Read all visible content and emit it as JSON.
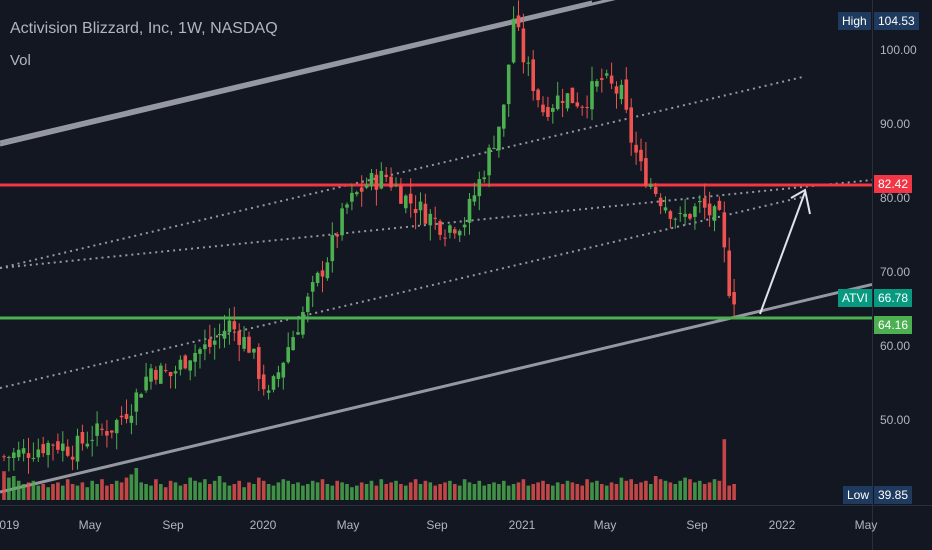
{
  "header": {
    "title": "Activision Blizzard, Inc, 1W, NASDAQ",
    "vol_label": "Vol"
  },
  "colors": {
    "background": "#131722",
    "up": "#4caf50",
    "down": "#ef5350",
    "resistance": "#f23645",
    "support": "#4caf50",
    "channel": "#9598a1",
    "ticker_tag": "#089981",
    "high_low_tag": "#1e3a5f"
  },
  "tags": {
    "high_label": "High",
    "high_value": "104.53",
    "low_label": "Low",
    "low_value": "39.85",
    "resistance_value": "82.42",
    "ticker_label": "ATVI",
    "ticker_value": "66.78",
    "support_value": "64.16"
  },
  "chart_data": {
    "type": "candlestick",
    "title": "Activision Blizzard, Inc, 1W, NASDAQ",
    "y_tick_labels": [
      "100.00",
      "90.00",
      "80.00",
      "70.00",
      "60.00",
      "50.00"
    ],
    "y_ticks": [
      100,
      90,
      80,
      70,
      60,
      50
    ],
    "x_tick_labels": [
      "2019",
      "May",
      "Sep",
      "2020",
      "May",
      "Sep",
      "2021",
      "May",
      "Sep",
      "2022",
      "May"
    ],
    "ylim": [
      39.85,
      104.53
    ],
    "horizontal_levels": [
      {
        "value": 82.42,
        "color": "red"
      },
      {
        "value": 64.16,
        "color": "green"
      }
    ],
    "channel": {
      "start": [
        "2019-01",
        40
      ],
      "lines": [
        {
          "style": "solid",
          "offset": 0
        },
        {
          "style": "dotted",
          "offset": 13
        },
        {
          "style": "dotted",
          "offset": 26
        },
        {
          "style": "dotted",
          "offset": 39
        },
        {
          "style": "solid",
          "offset": 52
        }
      ]
    },
    "projection_arrow": {
      "from": [
        "2021-11",
        65
      ],
      "to": [
        "2022-01",
        82
      ]
    },
    "weekly_close_path": [
      [
        0,
        45
      ],
      [
        6,
        46
      ],
      [
        10,
        47
      ],
      [
        14,
        46
      ],
      [
        18,
        48
      ],
      [
        22,
        49
      ],
      [
        26,
        52
      ],
      [
        30,
        57
      ],
      [
        34,
        56
      ],
      [
        38,
        59
      ],
      [
        42,
        60
      ],
      [
        46,
        63
      ],
      [
        50,
        60
      ],
      [
        54,
        53
      ],
      [
        58,
        60
      ],
      [
        62,
        66
      ],
      [
        66,
        72
      ],
      [
        70,
        79
      ],
      [
        74,
        82
      ],
      [
        78,
        83
      ],
      [
        82,
        80
      ],
      [
        86,
        78
      ],
      [
        90,
        76
      ],
      [
        94,
        77
      ],
      [
        98,
        84
      ],
      [
        102,
        92
      ],
      [
        104,
        104.5
      ],
      [
        106,
        99
      ],
      [
        110,
        92
      ],
      [
        114,
        94
      ],
      [
        118,
        93
      ],
      [
        122,
        96
      ],
      [
        126,
        94
      ],
      [
        128,
        88
      ],
      [
        130,
        84
      ],
      [
        134,
        80
      ],
      [
        138,
        77
      ],
      [
        142,
        79
      ],
      [
        146,
        77
      ],
      [
        148,
        68
      ],
      [
        149,
        66.78
      ]
    ],
    "volume_profile": [
      18,
      14,
      15,
      12,
      10,
      11,
      12,
      9,
      10,
      8,
      10,
      11,
      9,
      13,
      10,
      9,
      11,
      8,
      12,
      10,
      13,
      9,
      10,
      12,
      11,
      14,
      16,
      20,
      11,
      10,
      9,
      13,
      10,
      8,
      12,
      11,
      9,
      10,
      14,
      12,
      11,
      13,
      10,
      12,
      15,
      11,
      9,
      10,
      12,
      8,
      11,
      10,
      14,
      12,
      10,
      9,
      11,
      13,
      12,
      10,
      11,
      9,
      10,
      12,
      11,
      13,
      10,
      9,
      12,
      11,
      10,
      8,
      9,
      11,
      10,
      12,
      9,
      13,
      10,
      11,
      12,
      10,
      9,
      11,
      13,
      10,
      12,
      11,
      9,
      10,
      11,
      12,
      10,
      9,
      13,
      11,
      10,
      12,
      9,
      10,
      11,
      10,
      12,
      9,
      10,
      11,
      13,
      9,
      10,
      11,
      12,
      10,
      9,
      11,
      10,
      12,
      11,
      10,
      9,
      13,
      11,
      12,
      10,
      9,
      11,
      10,
      14,
      12,
      13,
      10,
      11,
      12,
      10,
      15,
      13,
      12,
      11,
      10,
      12,
      14,
      13,
      11,
      12,
      10,
      11,
      13,
      12,
      38,
      9,
      10
    ]
  }
}
